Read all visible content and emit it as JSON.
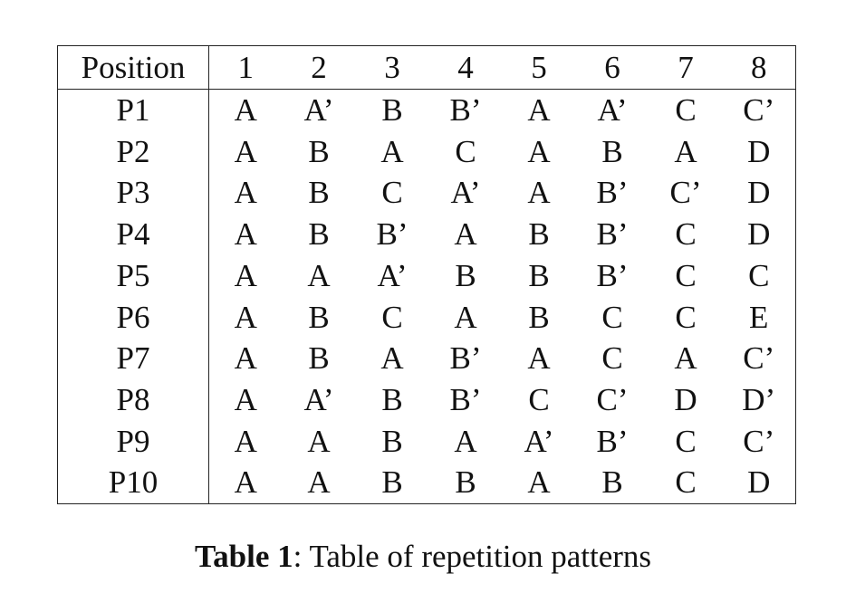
{
  "table": {
    "header_label": "Position",
    "columns": [
      "1",
      "2",
      "3",
      "4",
      "5",
      "6",
      "7",
      "8"
    ],
    "rows": [
      {
        "label": "P1",
        "cells": [
          "A",
          "A’",
          "B",
          "B’",
          "A",
          "A’",
          "C",
          "C’"
        ]
      },
      {
        "label": "P2",
        "cells": [
          "A",
          "B",
          "A",
          "C",
          "A",
          "B",
          "A",
          "D"
        ]
      },
      {
        "label": "P3",
        "cells": [
          "A",
          "B",
          "C",
          "A’",
          "A",
          "B’",
          "C’",
          "D"
        ]
      },
      {
        "label": "P4",
        "cells": [
          "A",
          "B",
          "B’",
          "A",
          "B",
          "B’",
          "C",
          "D"
        ]
      },
      {
        "label": "P5",
        "cells": [
          "A",
          "A",
          "A’",
          "B",
          "B",
          "B’",
          "C",
          "C"
        ]
      },
      {
        "label": "P6",
        "cells": [
          "A",
          "B",
          "C",
          "A",
          "B",
          "C",
          "C",
          "E"
        ]
      },
      {
        "label": "P7",
        "cells": [
          "A",
          "B",
          "A",
          "B’",
          "A",
          "C",
          "A",
          "C’"
        ]
      },
      {
        "label": "P8",
        "cells": [
          "A",
          "A’",
          "B",
          "B’",
          "C",
          "C’",
          "D",
          "D’"
        ]
      },
      {
        "label": "P9",
        "cells": [
          "A",
          "A",
          "B",
          "A",
          "A’",
          "B’",
          "C",
          "C’"
        ]
      },
      {
        "label": "P10",
        "cells": [
          "A",
          "A",
          "B",
          "B",
          "A",
          "B",
          "C",
          "D"
        ]
      }
    ]
  },
  "caption": {
    "label": "Table 1",
    "text": ": Table of repetition patterns"
  }
}
